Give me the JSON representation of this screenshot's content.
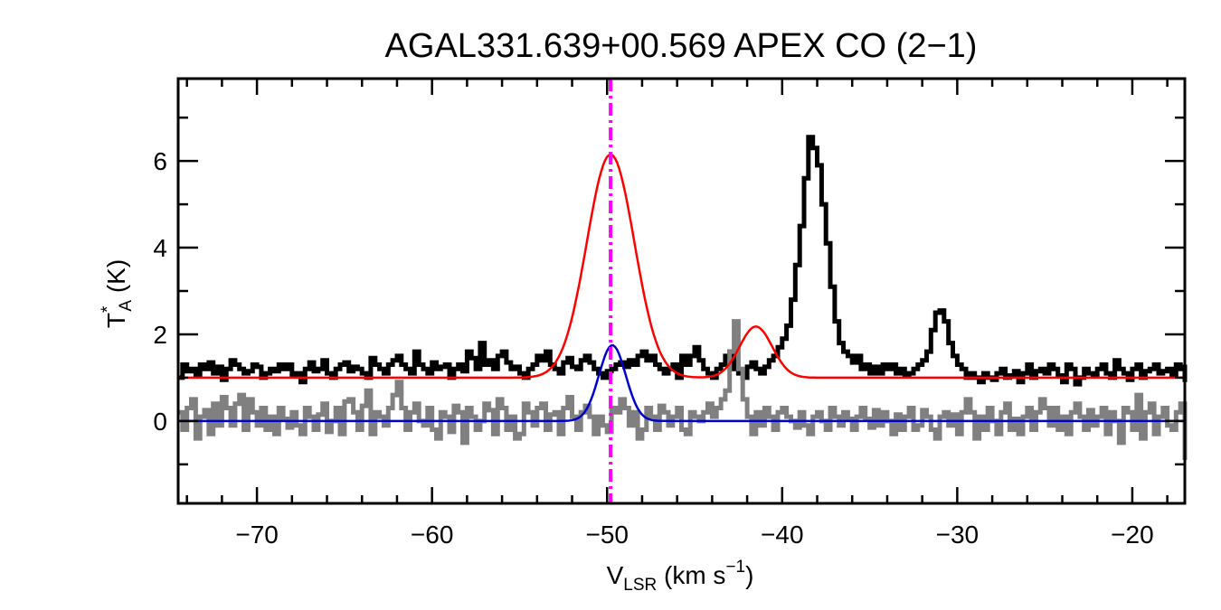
{
  "chart_data": {
    "type": "line",
    "title": "AGAL331.639+00.569  APEX CO (2−1)",
    "xlabel": {
      "main": "V",
      "sub": "LSR",
      "unit": " (km s",
      "sup": "−1",
      "close": ")"
    },
    "ylabel": {
      "main": "T",
      "sup": "*",
      "sub": "A",
      "unit": " (K)"
    },
    "xlim": [
      -74.5,
      -17
    ],
    "ylim": [
      -1.9,
      7.9
    ],
    "x_ticks": [
      -70,
      -60,
      -50,
      -40,
      -30,
      -20
    ],
    "x_tick_labels": [
      "−70",
      "−60",
      "−50",
      "−40",
      "−30",
      "−20"
    ],
    "y_ticks": [
      0,
      2,
      4,
      6
    ],
    "y_tick_labels": [
      "0",
      "2",
      "4",
      "6"
    ],
    "x_minor_step": 2,
    "y_minor_step": 1,
    "vline": {
      "x": -49.8,
      "color": "#ff00ff",
      "style": "dash-dot"
    },
    "series": [
      {
        "kind": "step",
        "color": "#000000",
        "x_start": -74.5,
        "x_step": 0.25,
        "values": [
          1.0,
          1.3,
          1.15,
          1.2,
          1.05,
          1.3,
          1.2,
          1.35,
          1.1,
          1.25,
          0.95,
          1.2,
          1.4,
          1.3,
          1.2,
          1.1,
          1.15,
          1.3,
          1.25,
          1.0,
          1.1,
          1.2,
          1.15,
          1.3,
          1.2,
          1.3,
          1.05,
          1.1,
          0.9,
          1.2,
          1.35,
          1.15,
          1.2,
          1.4,
          1.1,
          1.0,
          1.2,
          1.3,
          1.35,
          1.15,
          1.25,
          1.2,
          1.1,
          1.0,
          1.45,
          1.3,
          1.2,
          1.1,
          1.3,
          1.4,
          1.5,
          1.3,
          1.2,
          1.1,
          1.6,
          1.3,
          1.2,
          1.1,
          1.35,
          1.2,
          1.25,
          1.3,
          1.0,
          1.2,
          1.3,
          1.15,
          1.6,
          1.45,
          1.2,
          1.8,
          1.3,
          1.4,
          1.2,
          1.5,
          1.6,
          1.35,
          1.2,
          1.25,
          1.1,
          1.0,
          1.2,
          1.3,
          1.5,
          1.4,
          1.6,
          1.3,
          1.2,
          1.1,
          1.35,
          1.45,
          1.25,
          1.2,
          1.4,
          1.5,
          1.35,
          1.2,
          1.1,
          1.0,
          1.15,
          1.2,
          1.3,
          1.35,
          1.25,
          1.4,
          1.3,
          1.5,
          1.6,
          1.4,
          1.5,
          1.3,
          1.2,
          1.1,
          1.2,
          1.3,
          1.0,
          1.5,
          1.3,
          1.5,
          1.7,
          1.4,
          1.2,
          1.1,
          1.0,
          1.2,
          1.3,
          1.5,
          1.6,
          1.2,
          1.1,
          1.0,
          1.25,
          1.35,
          1.2,
          1.1,
          1.25,
          1.4,
          1.5,
          1.7,
          1.9,
          2.2,
          2.8,
          3.6,
          4.5,
          5.6,
          6.55,
          6.3,
          5.9,
          5.0,
          4.1,
          3.1,
          2.3,
          1.8,
          1.6,
          1.5,
          1.35,
          1.5,
          1.2,
          1.3,
          1.1,
          1.25,
          1.1,
          1.3,
          1.2,
          1.3,
          1.1,
          1.2,
          1.05,
          1.1,
          1.2,
          1.3,
          1.4,
          1.6,
          2.1,
          2.5,
          2.55,
          2.3,
          1.8,
          1.5,
          1.3,
          1.2,
          1.0,
          1.1,
          1.0,
          0.9,
          1.1,
          1.0,
          0.95,
          1.1,
          1.2,
          1.0,
          1.05,
          1.15,
          0.9,
          1.1,
          1.3,
          1.0,
          1.15,
          1.2,
          1.1,
          1.3,
          1.2,
          1.05,
          0.9,
          1.3,
          1.2,
          0.85,
          1.0,
          1.2,
          1.1,
          1.05,
          1.2,
          1.3,
          1.1,
          1.0,
          1.4,
          1.2,
          1.1,
          0.95,
          1.2,
          1.3,
          1.0,
          1.15,
          1.2,
          1.3,
          1.1,
          1.15,
          1.2,
          1.05,
          1.3,
          1.2,
          1.15,
          1.1,
          1.0,
          0.95,
          1.1,
          1.2,
          0.9,
          1.0,
          1.3,
          1.15,
          1.2,
          1.0
        ]
      },
      {
        "kind": "step",
        "color": "#808080",
        "x_start": -74.5,
        "x_step": 0.25,
        "values": [
          0.2,
          -0.2,
          0.3,
          0.5,
          -0.4,
          0.1,
          0.25,
          -0.3,
          0.4,
          -0.1,
          0.55,
          0.3,
          -0.1,
          0.4,
          0.6,
          -0.2,
          0.5,
          0.2,
          -0.1,
          0.3,
          -0.2,
          0.1,
          -0.3,
          0.3,
          0.05,
          -0.15,
          0.2,
          -0.1,
          -0.3,
          0.3,
          0.1,
          -0.2,
          0.15,
          0.4,
          -0.25,
          0.0,
          0.3,
          -0.3,
          0.45,
          0.5,
          0.2,
          -0.2,
          0.35,
          0.7,
          -0.3,
          0.2,
          0.1,
          -0.1,
          0.3,
          0.6,
          0.9,
          0.3,
          -0.2,
          0.2,
          0.4,
          0.0,
          -0.1,
          0.3,
          -0.2,
          -0.4,
          0.2,
          0.1,
          -0.25,
          0.35,
          0.2,
          -0.5,
          0.3,
          0.1,
          -0.2,
          0.0,
          0.4,
          0.25,
          -0.3,
          0.5,
          0.3,
          -0.2,
          0.1,
          -0.4,
          -0.3,
          0.4,
          0.2,
          -0.1,
          0.3,
          0.4,
          -0.2,
          0.15,
          0.2,
          -0.3,
          0.3,
          0.55,
          0.1,
          -0.2,
          0.2,
          0.35,
          0.1,
          -0.3,
          0.1,
          -0.1,
          -0.25,
          0.3,
          0.2,
          0.5,
          0.3,
          -0.1,
          0.2,
          -0.4,
          -0.2,
          0.3,
          0.1,
          -0.2,
          0.35,
          0.2,
          -0.1,
          0.1,
          0.3,
          -0.2,
          -0.3,
          0.2,
          0.1,
          0.0,
          0.2,
          0.4,
          0.1,
          0.3,
          0.5,
          0.7,
          1.6,
          2.3,
          1.2,
          0.5,
          0.1,
          -0.3,
          0.2,
          -0.1,
          0.3,
          0.1,
          -0.2,
          0.2,
          0.3,
          0.1,
          0.0,
          -0.15,
          0.2,
          -0.1,
          -0.3,
          0.1,
          0.2,
          0.0,
          -0.2,
          0.3,
          0.1,
          -0.1,
          0.2,
          0.05,
          -0.2,
          0.1,
          0.3,
          0.05,
          -0.15,
          0.25,
          -0.1,
          0.2,
          0.0,
          -0.3,
          0.15,
          -0.2,
          0.1,
          0.3,
          -0.2,
          -0.1,
          0.25,
          0.1,
          -0.2,
          -0.4,
          0.1,
          0.2,
          -0.1,
          0.15,
          -0.3,
          0.2,
          0.5,
          0.2,
          -0.4,
          0.1,
          -0.2,
          0.3,
          0.0,
          -0.3,
          0.2,
          0.4,
          -0.2,
          0.05,
          -0.3,
          0.1,
          0.3,
          -0.2,
          0.2,
          0.5,
          0.3,
          -0.1,
          0.3,
          -0.2,
          0.1,
          -0.3,
          0.2,
          0.4,
          0.1,
          -0.2,
          0.25,
          -0.1,
          0.1,
          0.3,
          -0.3,
          0.2,
          0.0,
          -0.5,
          0.3,
          0.2,
          -0.2,
          0.6,
          -0.4,
          0.2,
          0.4,
          -0.3,
          0.1,
          0.3,
          -0.1,
          -0.2,
          0.2,
          0.4,
          -0.1,
          0.3,
          -0.2,
          0.1,
          -0.3,
          -0.9,
          0.2,
          -0.3,
          0.1,
          -0.4,
          0.3,
          0.0,
          -0.3,
          0.2,
          -0.2,
          -0.5,
          0.1,
          -0.3,
          0.2
        ]
      },
      {
        "kind": "fit",
        "color": "#ff0000",
        "baseline": 1.0,
        "components": [
          {
            "amp": 5.15,
            "center": -49.8,
            "fwhm": 3.2
          },
          {
            "amp": 1.18,
            "center": -41.5,
            "fwhm": 2.2
          }
        ]
      },
      {
        "kind": "fit",
        "color": "#0000cc",
        "baseline": 0.0,
        "components": [
          {
            "amp": 1.75,
            "center": -49.7,
            "fwhm": 1.8
          }
        ]
      }
    ]
  }
}
